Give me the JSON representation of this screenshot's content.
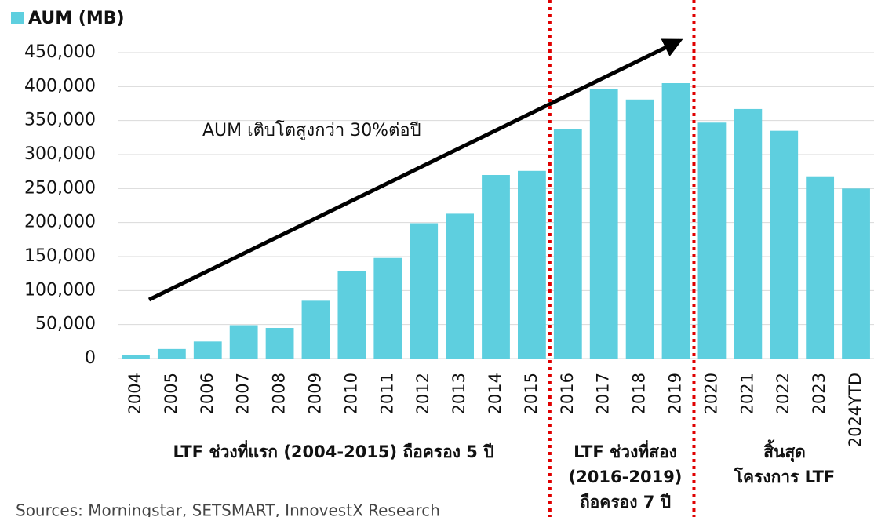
{
  "chart_data": {
    "type": "bar",
    "legend": "AUM (MB)",
    "color": "#5ecfdf",
    "categories": [
      "2004",
      "2005",
      "2006",
      "2007",
      "2008",
      "2009",
      "2010",
      "2011",
      "2012",
      "2013",
      "2014",
      "2015",
      "2016",
      "2017",
      "2018",
      "2019",
      "2020",
      "2021",
      "2022",
      "2023",
      "2024YTD"
    ],
    "values": [
      5000,
      14000,
      25000,
      49000,
      45000,
      85000,
      129000,
      148000,
      199000,
      213000,
      270000,
      276000,
      337000,
      396000,
      381000,
      405000,
      347000,
      367000,
      335000,
      268000,
      250000
    ],
    "ylim": [
      0,
      450000
    ],
    "yticks": [
      0,
      {
        "value": 50000,
        "label": "50,000"
      },
      {
        "value": 100000,
        "label": "100,000"
      },
      {
        "value": 150000,
        "label": "150,000"
      },
      {
        "value": 200000,
        "label": "200,000"
      },
      {
        "value": 250000,
        "label": "250,000"
      },
      {
        "value": 300000,
        "label": "300,000"
      },
      {
        "value": 350000,
        "label": "350,000"
      },
      {
        "value": 400000,
        "label": "400,000"
      },
      {
        "value": 450000,
        "label": "450,000"
      }
    ],
    "grid": true,
    "annotations": {
      "trend": "AUM เติบโตสูงกว่า 30%ต่อปี",
      "period1": "LTF ช่วงที่แรก (2004-2015) ถือครอง 5 ปี",
      "period2": [
        "LTF ช่วงที่สอง",
        "(2016-2019)",
        "ถือครอง 7 ปี"
      ],
      "period3": [
        "สิ้นสุด",
        "โครงการ LTF"
      ]
    },
    "source": "Sources: Morningstar, SETSMART, InnovestX Research"
  }
}
